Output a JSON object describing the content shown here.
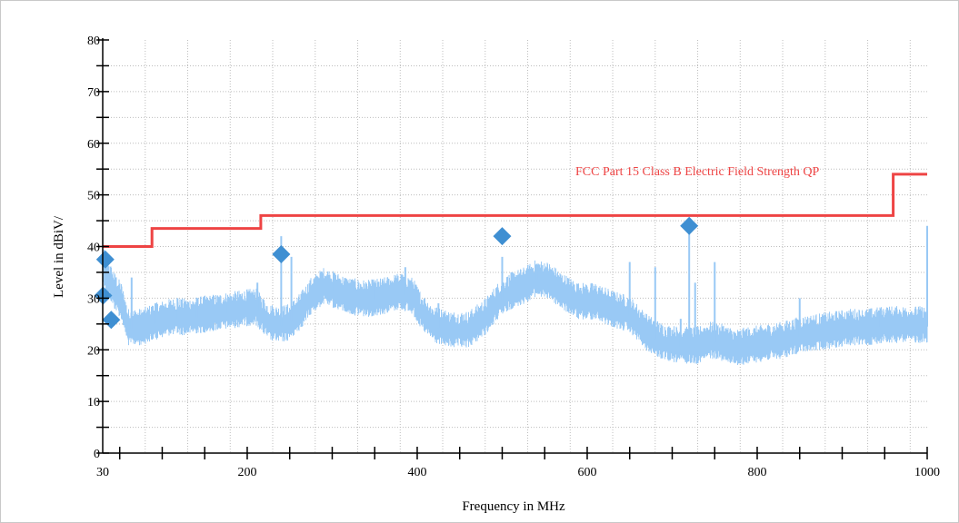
{
  "chart_data": {
    "type": "line",
    "xlabel": "Frequency in MHz",
    "ylabel": "Level in dBiV/",
    "x_ticks": [
      "30",
      "200",
      "400",
      "600",
      "800",
      "1000"
    ],
    "y_ticks": [
      "0",
      "10",
      "20",
      "30",
      "40",
      "50",
      "60",
      "70",
      "80"
    ],
    "xlim": [
      30,
      1000
    ],
    "ylim": [
      0,
      80
    ],
    "grid": true,
    "limit_line": {
      "name": "FCC Part 15 Class B Electric Field Strength QP",
      "color": "#ee4444",
      "x": [
        30,
        88,
        88,
        216,
        216,
        960,
        960,
        1000
      ],
      "y": [
        40,
        40,
        43.5,
        43.5,
        46,
        46,
        54,
        54
      ]
    },
    "measurement": {
      "color": "#99c9f5",
      "baseline": [
        [
          30,
          36
        ],
        [
          38,
          33
        ],
        [
          44,
          31
        ],
        [
          52,
          29
        ],
        [
          60,
          24
        ],
        [
          75,
          24
        ],
        [
          90,
          25
        ],
        [
          110,
          26
        ],
        [
          130,
          26
        ],
        [
          150,
          26.5
        ],
        [
          170,
          27
        ],
        [
          190,
          27.5
        ],
        [
          210,
          28
        ],
        [
          225,
          25
        ],
        [
          238,
          24.5
        ],
        [
          250,
          25
        ],
        [
          262,
          27
        ],
        [
          275,
          30
        ],
        [
          290,
          32
        ],
        [
          305,
          31
        ],
        [
          320,
          30
        ],
        [
          340,
          29.5
        ],
        [
          360,
          30
        ],
        [
          380,
          31
        ],
        [
          395,
          30
        ],
        [
          405,
          27
        ],
        [
          420,
          24.5
        ],
        [
          440,
          23.5
        ],
        [
          460,
          23.5
        ],
        [
          480,
          26
        ],
        [
          495,
          29
        ],
        [
          510,
          31
        ],
        [
          525,
          32
        ],
        [
          540,
          33.5
        ],
        [
          555,
          33
        ],
        [
          570,
          31
        ],
        [
          590,
          29
        ],
        [
          610,
          29
        ],
        [
          630,
          27.5
        ],
        [
          650,
          26.5
        ],
        [
          670,
          23
        ],
        [
          690,
          21
        ],
        [
          710,
          20.5
        ],
        [
          730,
          20.5
        ],
        [
          745,
          21.5
        ],
        [
          760,
          21
        ],
        [
          775,
          20
        ],
        [
          790,
          20.5
        ],
        [
          810,
          21
        ],
        [
          830,
          21.5
        ],
        [
          850,
          22.5
        ],
        [
          870,
          23
        ],
        [
          890,
          23.5
        ],
        [
          910,
          24
        ],
        [
          930,
          24
        ],
        [
          950,
          24.5
        ],
        [
          970,
          24.5
        ],
        [
          990,
          24.5
        ],
        [
          1000,
          24.5
        ]
      ],
      "spikes": [
        [
          32,
          39
        ],
        [
          45,
          34
        ],
        [
          64,
          34
        ],
        [
          92,
          29
        ],
        [
          118,
          30
        ],
        [
          141,
          30
        ],
        [
          175,
          30
        ],
        [
          212,
          33
        ],
        [
          240,
          42
        ],
        [
          252,
          38
        ],
        [
          302,
          34
        ],
        [
          350,
          33
        ],
        [
          386,
          36
        ],
        [
          425,
          29
        ],
        [
          500,
          38
        ],
        [
          541,
          35
        ],
        [
          592,
          32
        ],
        [
          650,
          37
        ],
        [
          680,
          36
        ],
        [
          710,
          26
        ],
        [
          720,
          43
        ],
        [
          727,
          33
        ],
        [
          750,
          37
        ],
        [
          850,
          30
        ],
        [
          945,
          28
        ],
        [
          1000,
          44
        ]
      ]
    },
    "markers": {
      "color": "#3f8fd2",
      "x": [
        30.5,
        33,
        40,
        240,
        500,
        720
      ],
      "y": [
        30.5,
        37.5,
        25.8,
        38.5,
        42,
        44
      ]
    }
  }
}
